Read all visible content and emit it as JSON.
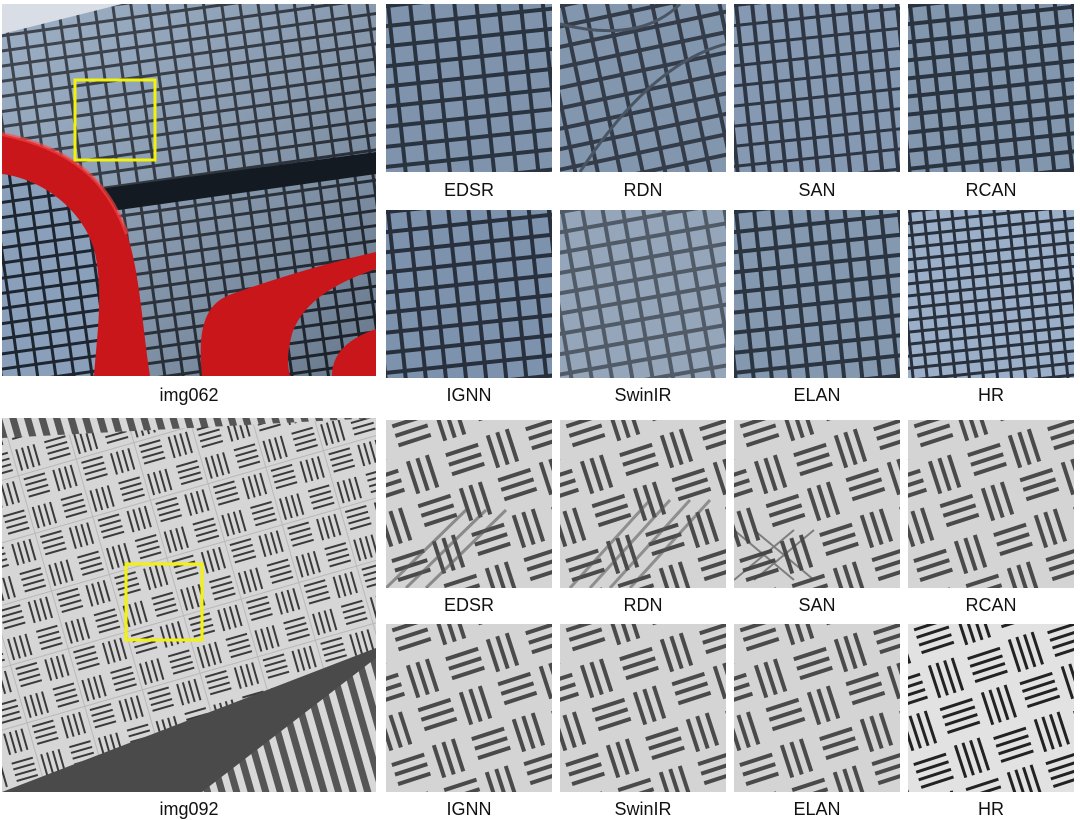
{
  "panels": [
    {
      "image_label": "img062",
      "methods_row1": [
        "EDSR",
        "RDN",
        "SAN",
        "RCAN"
      ],
      "methods_row2": [
        "IGNN",
        "SwinIR",
        "ELAN",
        "HR"
      ]
    },
    {
      "image_label": "img092",
      "methods_row1": [
        "EDSR",
        "RDN",
        "SAN",
        "RCAN"
      ],
      "methods_row2": [
        "IGNN",
        "SwinIR",
        "ELAN",
        "HR"
      ]
    }
  ],
  "colors": {
    "highlight_box": "#f2f20a",
    "glass_blue": "#7f93ad",
    "mullion_dark": "#2a3340",
    "sculpture_red": "#c8161a",
    "panel_gray": "#d6d6d6",
    "slot_dark": "#3a3a3a"
  }
}
